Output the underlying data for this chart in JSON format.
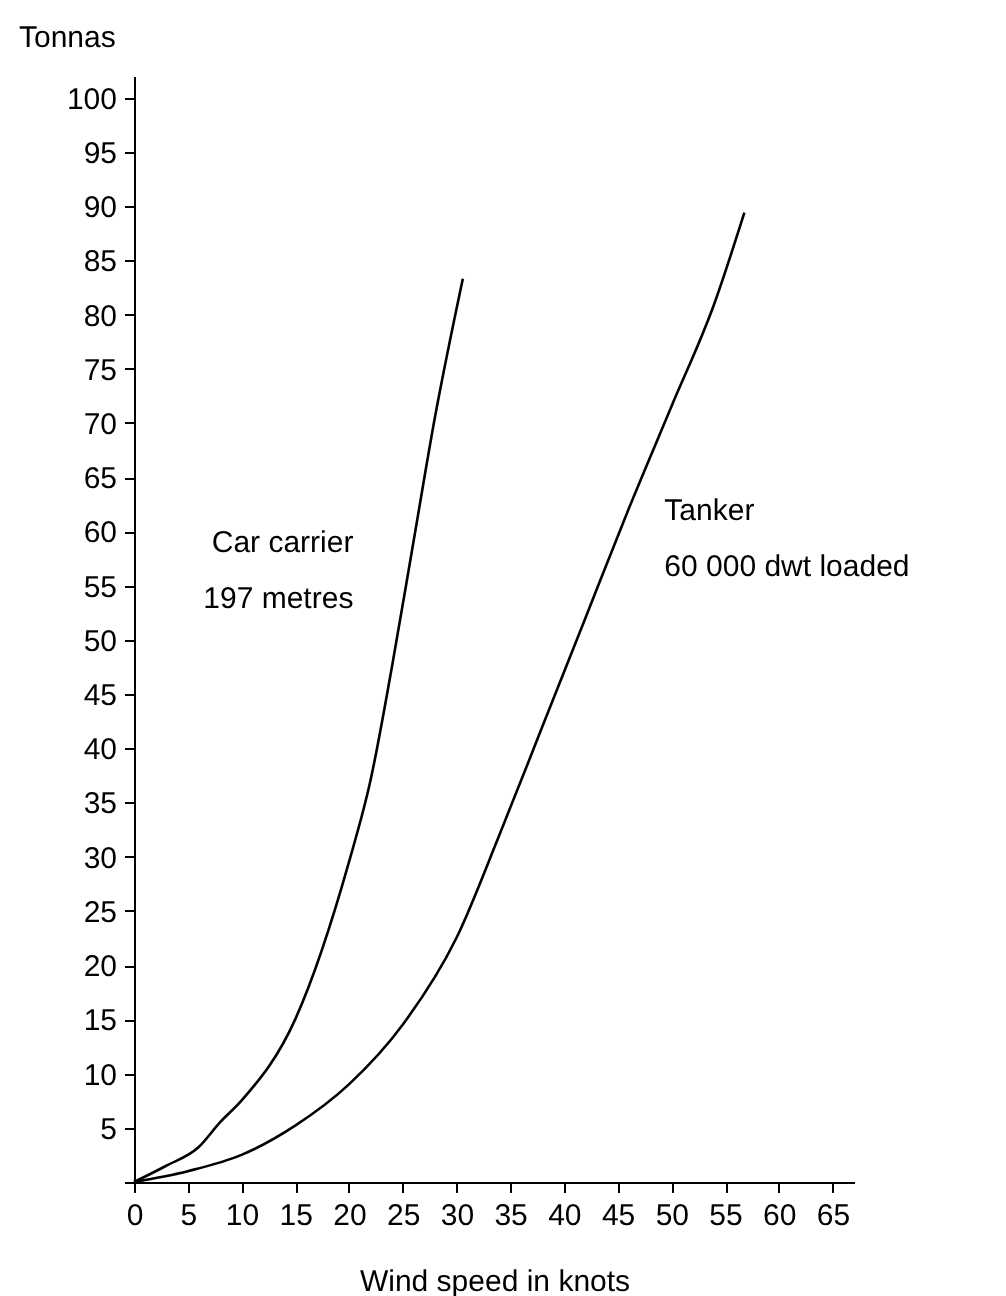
{
  "chart_data": {
    "type": "line",
    "xlabel": "Wind speed in knots",
    "ylabel": "Tonnas",
    "xlim": [
      0,
      67
    ],
    "ylim": [
      0,
      102
    ],
    "xticks": [
      0,
      5,
      10,
      15,
      20,
      25,
      30,
      35,
      40,
      45,
      50,
      55,
      60,
      65
    ],
    "yticks": [
      {
        "value": 0,
        "label": null
      },
      5,
      10,
      15,
      20,
      25,
      30,
      35,
      40,
      45,
      50,
      55,
      60,
      65,
      70,
      75,
      80,
      85,
      90,
      95,
      100
    ],
    "grid": false,
    "legend": false,
    "marker": "none",
    "line_style": "solid",
    "series": [
      {
        "name": "Car carrier",
        "color": "#000000",
        "x": [
          0,
          3,
          6,
          8,
          10,
          15,
          20,
          22,
          24,
          26,
          28,
          30.6
        ],
        "values": [
          0,
          1.5,
          3.2,
          5.5,
          7.5,
          15,
          29.5,
          37,
          47.5,
          59,
          70.5,
          83.3
        ]
      },
      {
        "name": "Tanker",
        "color": "#000000",
        "x": [
          0,
          5,
          10,
          15,
          20,
          25,
          30,
          34,
          38,
          42,
          46,
          50,
          54,
          56.8
        ],
        "values": [
          0,
          1,
          2.5,
          5.2,
          9,
          14.5,
          22.5,
          32,
          42,
          52,
          62,
          71.5,
          81,
          89.4
        ]
      }
    ],
    "annotations": [
      "197 metres",
      "60 000 dwt loaded"
    ]
  }
}
